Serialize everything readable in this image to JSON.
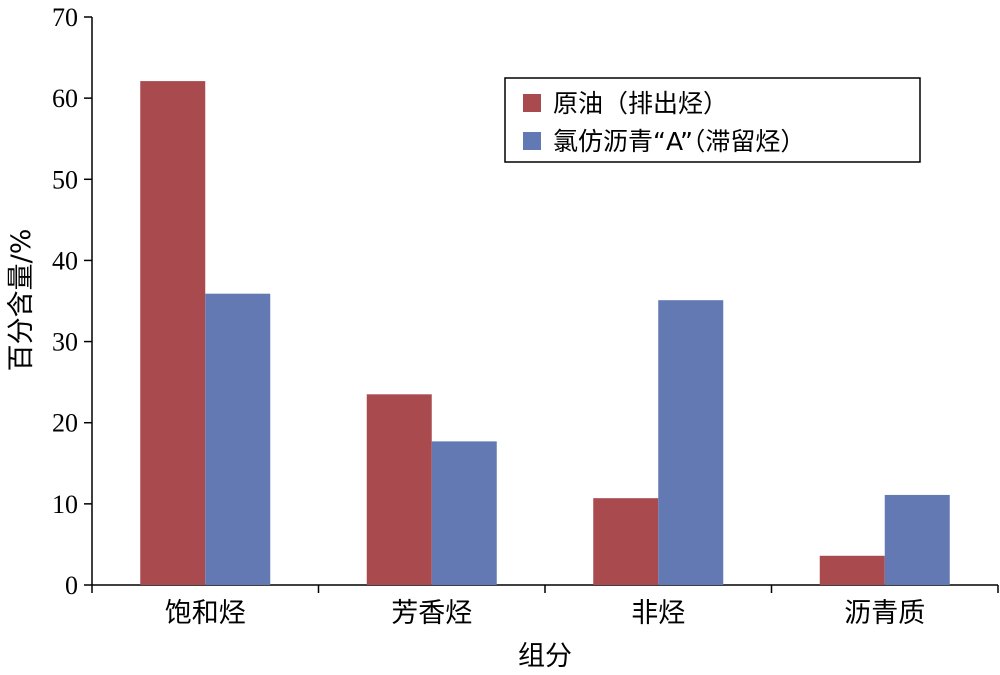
{
  "chart_data": {
    "type": "bar",
    "xlabel": "组分",
    "ylabel": "百分含量/%",
    "ylim": [
      0,
      70
    ],
    "yticks": [
      0,
      10,
      20,
      30,
      40,
      50,
      60,
      70
    ],
    "categories": [
      "饱和烃",
      "芳香烃",
      "非烃",
      "沥青质"
    ],
    "series": [
      {
        "name": "原油（排出烃）",
        "values": [
          62.1,
          23.5,
          10.7,
          3.6
        ],
        "color": "#A84A4E"
      },
      {
        "name": "氯仿沥青“A”（滞留烃）",
        "values": [
          35.9,
          17.7,
          35.1,
          11.1
        ],
        "color": "#6379B4"
      }
    ],
    "legend_position": "top-right",
    "grid": false
  }
}
